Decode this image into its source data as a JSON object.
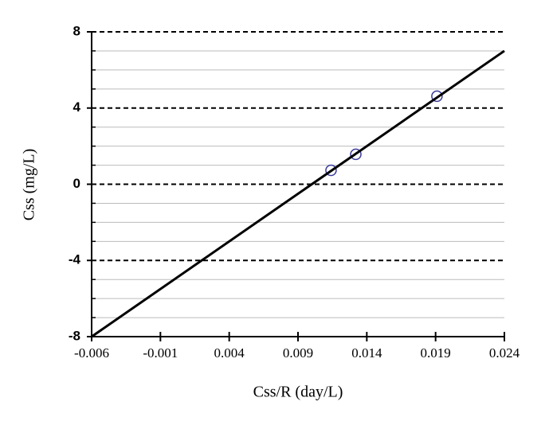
{
  "chart_data": {
    "type": "scatter",
    "x_label": "Css/R (day/L)",
    "y_label": "Css (mg/L)",
    "xlim": [
      -0.006,
      0.024
    ],
    "xticks": [
      -0.006,
      -0.001,
      0.004,
      0.009,
      0.014,
      0.019,
      0.024
    ],
    "ylim": [
      -8,
      8
    ],
    "yticks": [
      -8,
      -4,
      0,
      4,
      8
    ],
    "grid": true,
    "series": [
      {
        "style": "markers",
        "color": "#3b3b9b",
        "x": [
          0.0114,
          0.0132,
          0.0191
        ],
        "values": [
          0.73,
          1.57,
          4.62
        ]
      },
      {
        "style": "line",
        "color": "#000000",
        "x": [
          -0.006,
          0.024
        ],
        "values": [
          -8,
          7.0
        ]
      }
    ]
  }
}
